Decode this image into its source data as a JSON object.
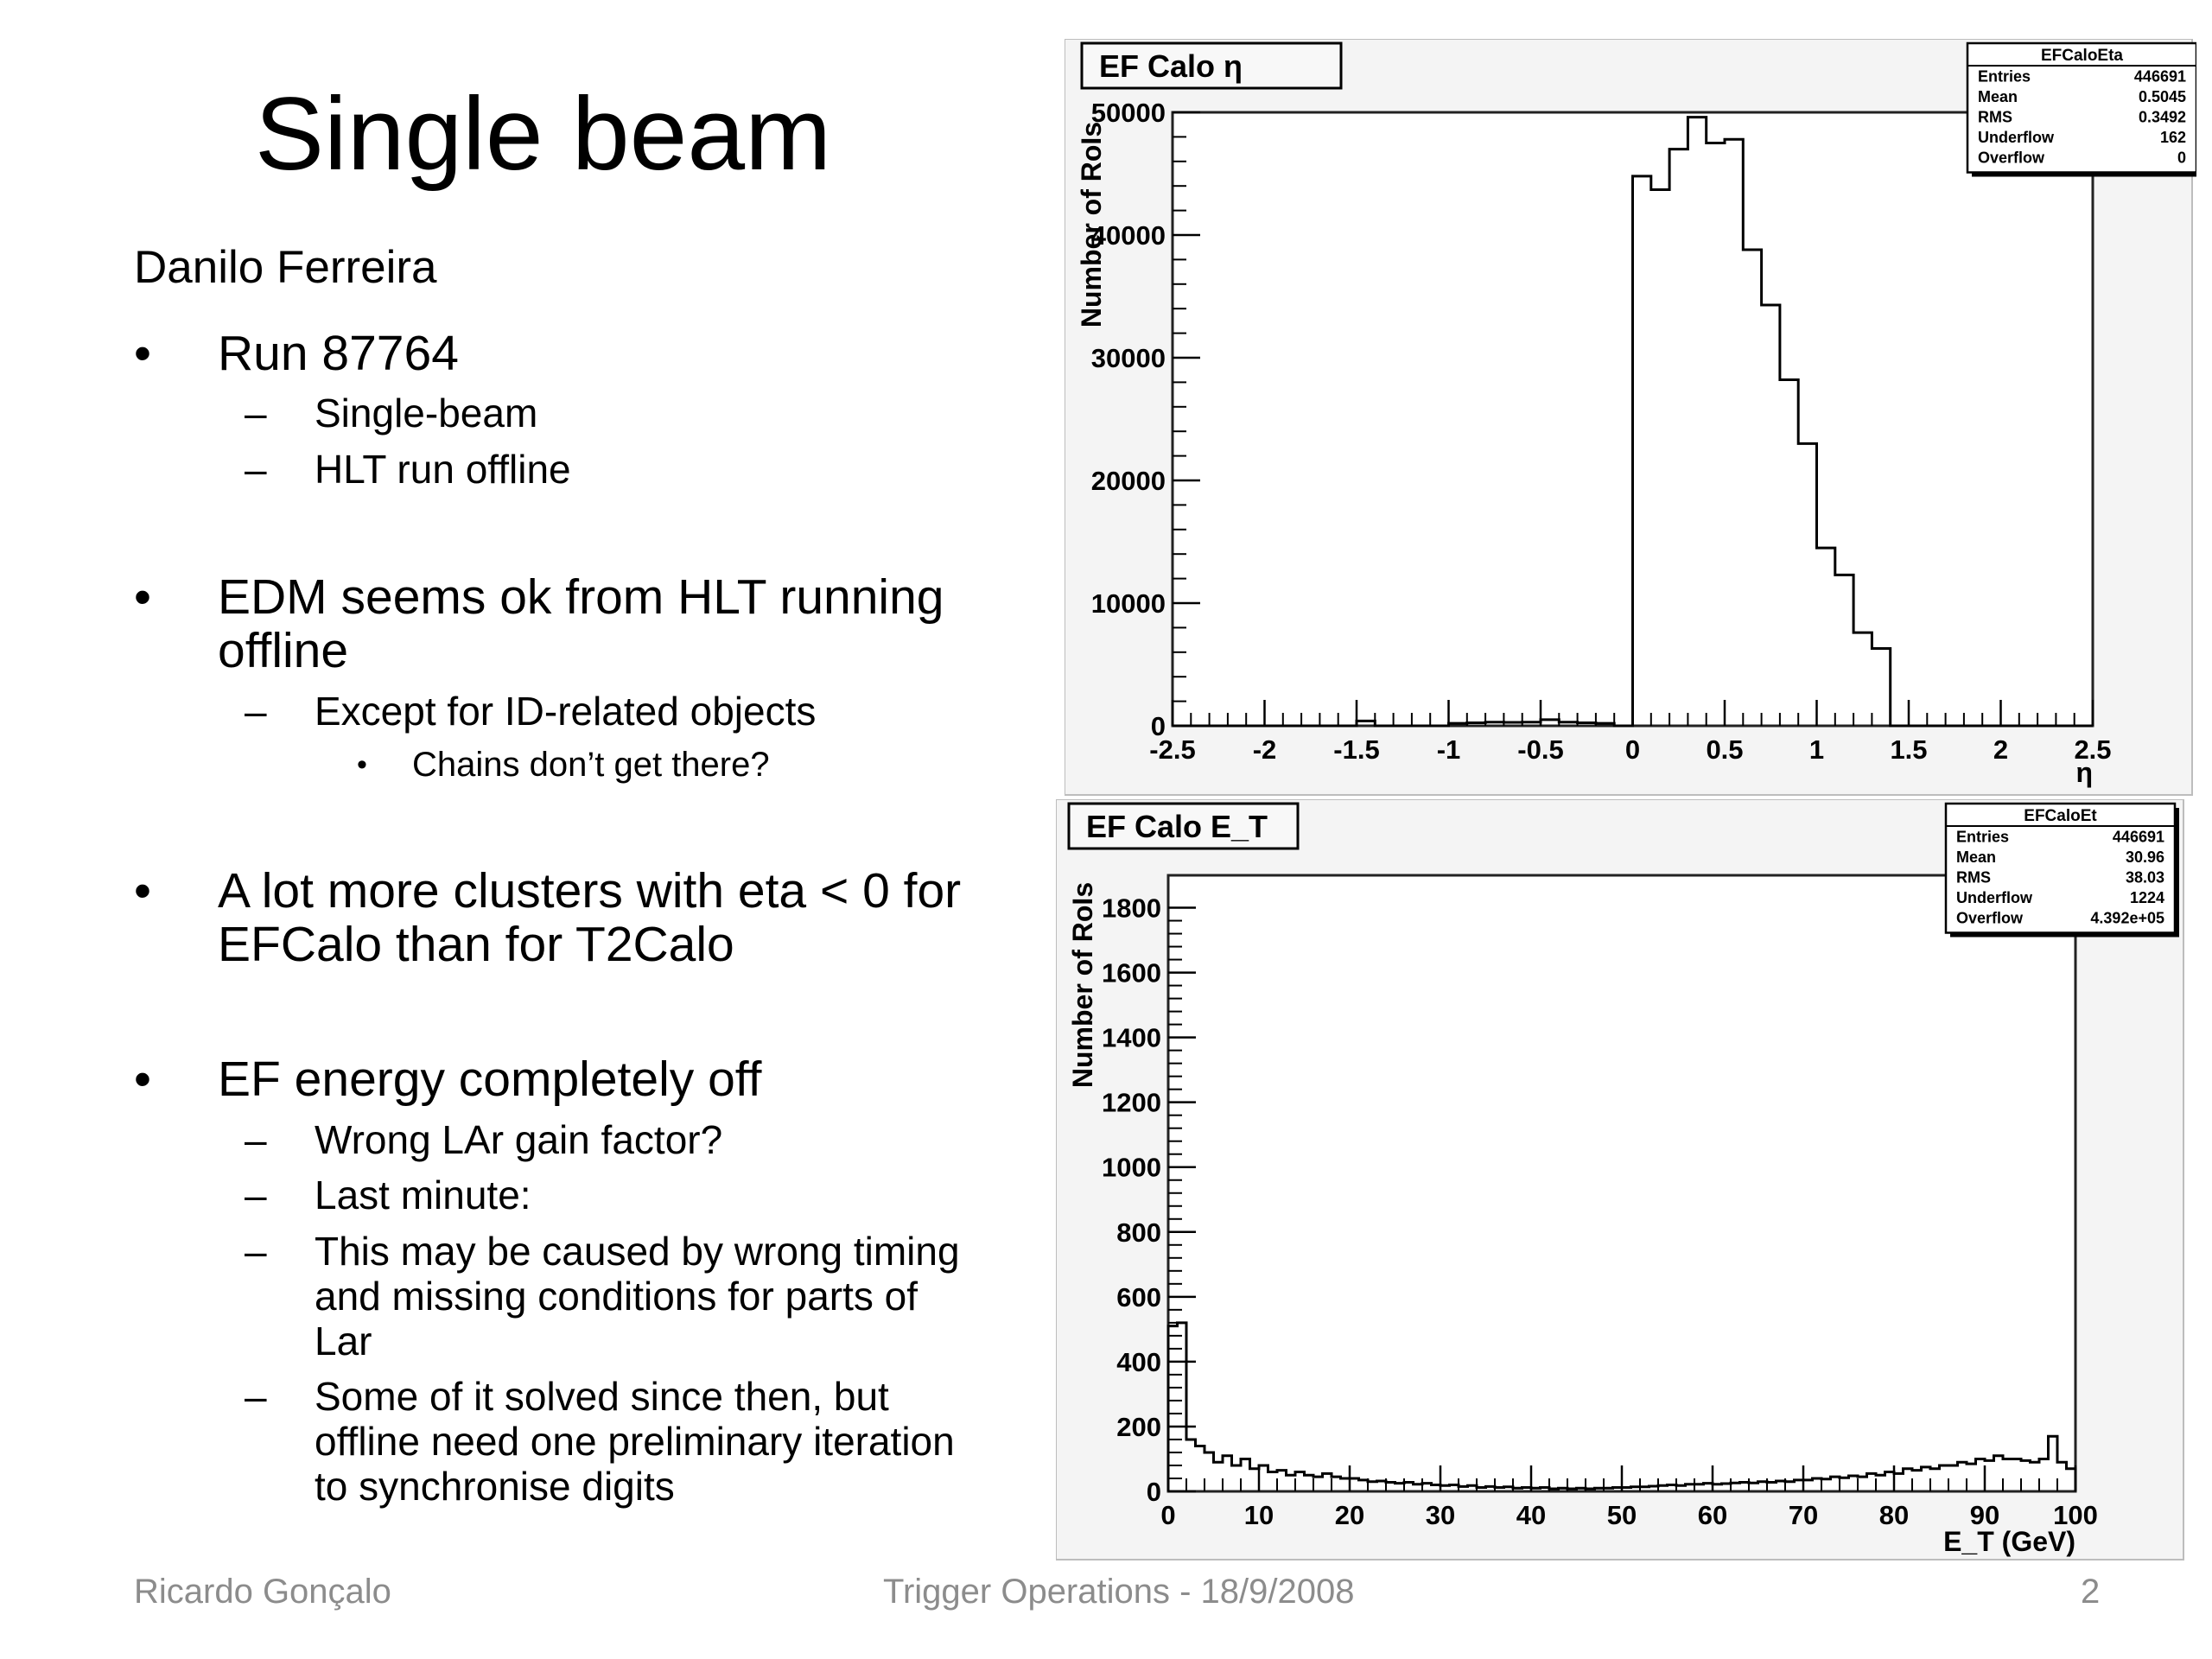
{
  "slide": {
    "title": "Single beam",
    "author": "Danilo Ferreira",
    "bullets": [
      {
        "marker": "•",
        "text": "Run 87764",
        "subs": [
          {
            "marker": "–",
            "text": "Single-beam"
          },
          {
            "marker": "–",
            "text": "HLT run offline"
          }
        ]
      },
      {
        "marker": "•",
        "text": "EDM seems ok from HLT running offline",
        "subs": [
          {
            "marker": "–",
            "text": "Except for ID-related objects",
            "subs": [
              {
                "marker": "•",
                "text": "Chains don’t get there?"
              }
            ]
          }
        ]
      },
      {
        "marker": "•",
        "text": "A lot more clusters with eta < 0 for EFCalo than for T2Calo"
      },
      {
        "marker": "•",
        "text": "EF energy completely off",
        "subs": [
          {
            "marker": "–",
            "text": "Wrong LAr gain factor?"
          },
          {
            "marker": "–",
            "text": "Last minute:"
          },
          {
            "marker": "–",
            "text": "This may be caused by wrong timing and missing conditions for parts of Lar"
          },
          {
            "marker": "–",
            "text": "Some of it solved since then, but offline need one preliminary iteration to synchronise digits"
          }
        ]
      }
    ]
  },
  "footer": {
    "left": "Ricardo Gonçalo",
    "center": "Trigger Operations - 18/9/2008",
    "right": "2"
  },
  "chart_data": [
    {
      "type": "histogram",
      "title": "EF Calo η",
      "xlabel": "η",
      "ylabel": "Number of RoIs",
      "xlim": [
        -2.5,
        2.5
      ],
      "ylim": [
        0,
        50000
      ],
      "xticks": [
        "-2.5",
        "-2",
        "-1.5",
        "-1",
        "-0.5",
        "0",
        "0.5",
        "1",
        "1.5",
        "2",
        "2.5"
      ],
      "yticks": [
        "0",
        "10000",
        "20000",
        "30000",
        "40000",
        "50000"
      ],
      "bin_edges": [
        -2.5,
        -2.4,
        -2.3,
        -2.2,
        -2.1,
        -2.0,
        -1.9,
        -1.8,
        -1.7,
        -1.6,
        -1.5,
        -1.4,
        -1.3,
        -1.2,
        -1.1,
        -1.0,
        -0.9,
        -0.8,
        -0.7,
        -0.6,
        -0.5,
        -0.4,
        -0.3,
        -0.2,
        -0.1,
        0.0,
        0.1,
        0.2,
        0.3,
        0.4,
        0.5,
        0.6,
        0.7,
        0.8,
        0.9,
        1.0,
        1.1,
        1.2,
        1.3,
        1.4,
        1.5,
        1.6,
        1.7,
        1.8,
        1.9,
        2.0,
        2.1,
        2.2,
        2.3,
        2.4,
        2.5
      ],
      "values": [
        0,
        0,
        0,
        0,
        0,
        0,
        0,
        0,
        0,
        0,
        400,
        0,
        0,
        0,
        0,
        200,
        250,
        300,
        280,
        300,
        500,
        300,
        250,
        200,
        0,
        44800,
        43700,
        47000,
        49600,
        47500,
        47800,
        38800,
        34300,
        28200,
        23000,
        14500,
        12300,
        7600,
        6300,
        0,
        0,
        0,
        0,
        0,
        0,
        0,
        0,
        0,
        0,
        0
      ],
      "stats": {
        "name": "EFCaloEta",
        "rows": [
          [
            "Entries",
            "446691"
          ],
          [
            "Mean",
            "0.5045"
          ],
          [
            "RMS",
            "0.3492"
          ],
          [
            "Underflow",
            "162"
          ],
          [
            "Overflow",
            "0"
          ]
        ]
      }
    },
    {
      "type": "histogram",
      "title": "EF Calo E_T",
      "xlabel": "E_T (GeV)",
      "ylabel": "Number of RoIs",
      "xlim": [
        0,
        100
      ],
      "ylim": [
        0,
        1900
      ],
      "xticks": [
        "0",
        "10",
        "20",
        "30",
        "40",
        "50",
        "60",
        "70",
        "80",
        "90",
        "100"
      ],
      "yticks": [
        "0",
        "200",
        "400",
        "600",
        "800",
        "1000",
        "1200",
        "1400",
        "1600",
        "1800"
      ],
      "bin_width": 1,
      "values": [
        510,
        520,
        160,
        140,
        120,
        90,
        110,
        80,
        100,
        70,
        80,
        60,
        65,
        50,
        60,
        50,
        45,
        55,
        45,
        40,
        40,
        35,
        30,
        32,
        28,
        25,
        28,
        22,
        25,
        20,
        18,
        20,
        15,
        18,
        12,
        15,
        12,
        14,
        10,
        12,
        10,
        12,
        8,
        10,
        8,
        10,
        8,
        10,
        10,
        12,
        12,
        14,
        14,
        16,
        18,
        20,
        18,
        22,
        22,
        25,
        22,
        24,
        26,
        28,
        26,
        30,
        28,
        32,
        30,
        35,
        35,
        40,
        38,
        45,
        42,
        48,
        45,
        55,
        50,
        60,
        55,
        70,
        65,
        75,
        70,
        80,
        80,
        90,
        85,
        100,
        95,
        110,
        100,
        100,
        95,
        90,
        100,
        170,
        90,
        70
      ],
      "stats": {
        "name": "EFCaloEt",
        "rows": [
          [
            "Entries",
            "446691"
          ],
          [
            "Mean",
            "30.96"
          ],
          [
            "RMS",
            "38.03"
          ],
          [
            "Underflow",
            "1224"
          ],
          [
            "Overflow",
            "4.392e+05"
          ]
        ]
      }
    }
  ]
}
